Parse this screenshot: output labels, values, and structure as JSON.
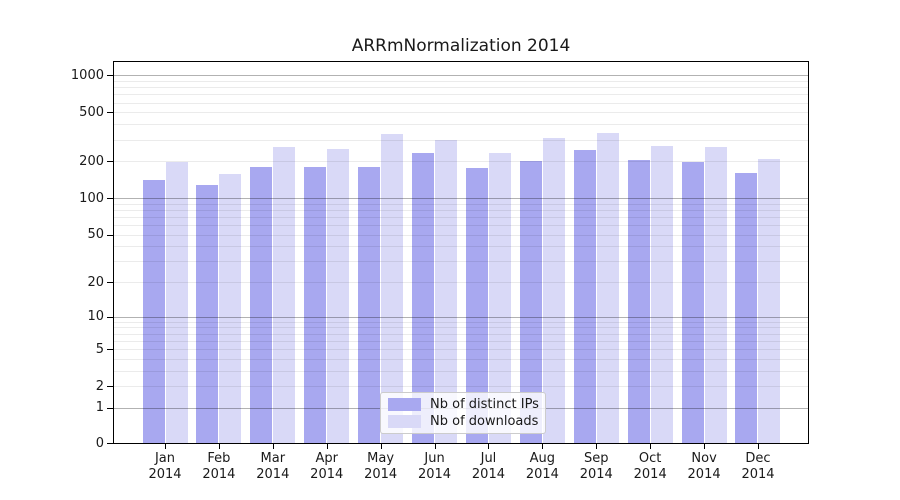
{
  "chart_data": {
    "type": "bar",
    "title": "ARRmNormalization 2014",
    "x_categories": [
      {
        "month": "Jan",
        "year": "2014"
      },
      {
        "month": "Feb",
        "year": "2014"
      },
      {
        "month": "Mar",
        "year": "2014"
      },
      {
        "month": "Apr",
        "year": "2014"
      },
      {
        "month": "May",
        "year": "2014"
      },
      {
        "month": "Jun",
        "year": "2014"
      },
      {
        "month": "Jul",
        "year": "2014"
      },
      {
        "month": "Aug",
        "year": "2014"
      },
      {
        "month": "Sep",
        "year": "2014"
      },
      {
        "month": "Oct",
        "year": "2014"
      },
      {
        "month": "Nov",
        "year": "2014"
      },
      {
        "month": "Dec",
        "year": "2014"
      }
    ],
    "series": [
      {
        "name": "Nb of distinct IPs",
        "color": "#a8a8f0",
        "values": [
          141,
          128,
          178,
          178,
          178,
          232,
          175,
          202,
          247,
          205,
          199,
          160
        ]
      },
      {
        "name": "Nb of downloads",
        "color": "#d9d9f7",
        "values": [
          197,
          156,
          263,
          251,
          334,
          298,
          235,
          311,
          338,
          267,
          263,
          208
        ]
      }
    ],
    "yscale": "log1p",
    "ytick_labels": [
      0,
      1,
      2,
      5,
      10,
      20,
      50,
      100,
      200,
      500,
      1000
    ],
    "ylim": [
      0,
      1270
    ],
    "grid": "horizontal-log-minor-and-major",
    "legend_position": "lower-center"
  },
  "colors": {
    "background": "#ffffff",
    "spine": "#000000",
    "grid_major": "rgba(0,0,0,0.30)",
    "grid_minor": "rgba(0,0,0,0.08)",
    "text": "#1a1a1a",
    "legend_border": "#cccccc"
  }
}
